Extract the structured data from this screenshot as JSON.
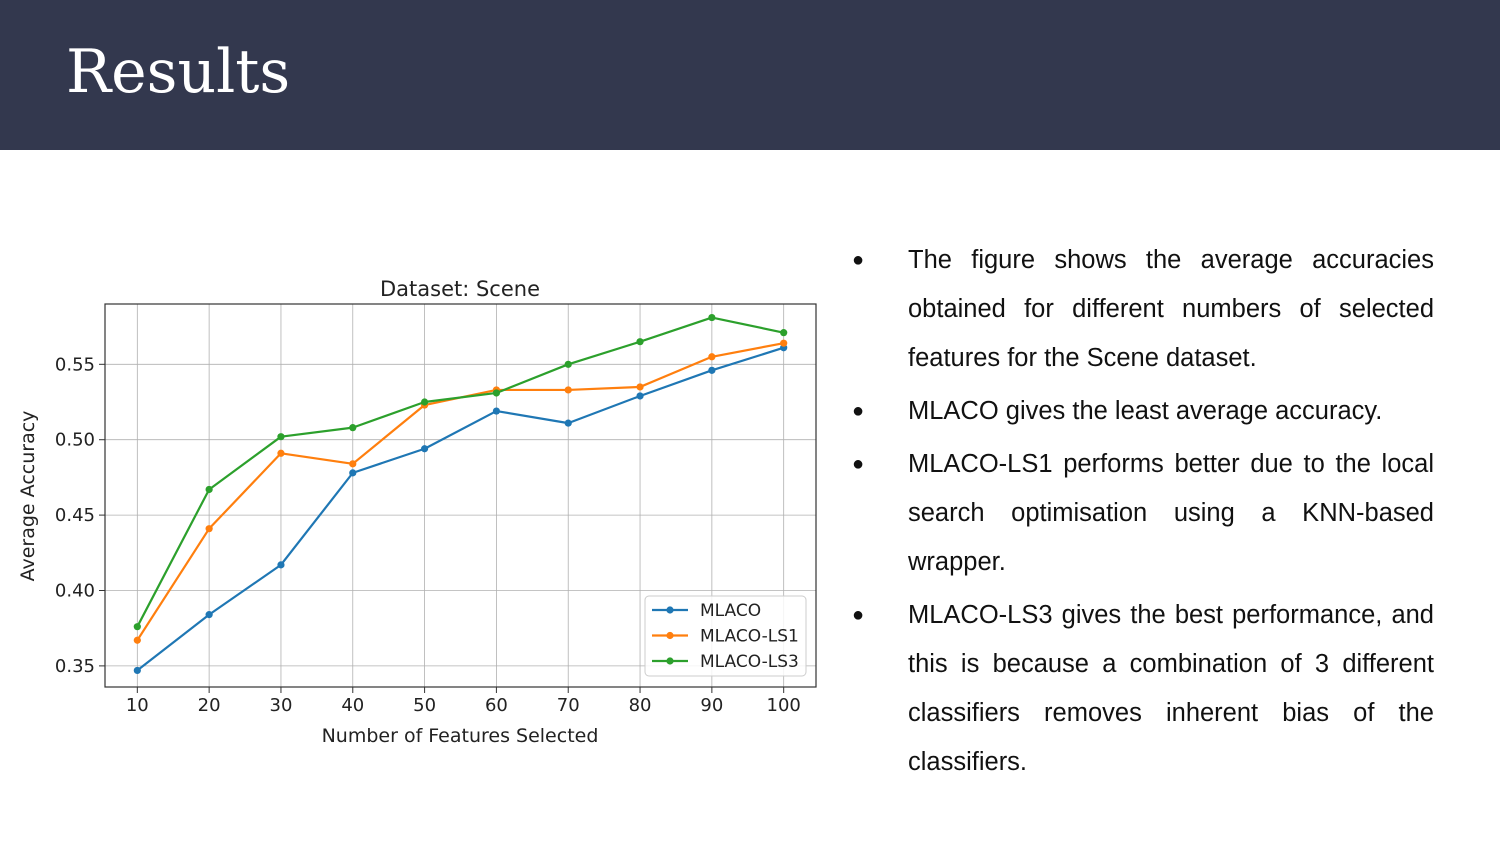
{
  "slide": {
    "title": "Results",
    "colors": {
      "header_bg": "#33384e",
      "title_text": "#ffffff"
    }
  },
  "bullets": [
    {
      "text": "The figure shows the average accuracies obtained for different numbers of selected features for the Scene dataset."
    },
    {
      "text": "MLACO gives the least average accuracy."
    },
    {
      "text": "MLACO-LS1 performs better due to the local search optimisation using a KNN-based wrapper."
    },
    {
      "text": "MLACO-LS3 gives the best performance, and this is because a combination of 3 different classifiers removes inherent bias of the classifiers."
    }
  ],
  "chart_data": {
    "type": "line",
    "title": "Dataset: Scene",
    "xlabel": "Number of Features Selected",
    "ylabel": "Average Accuracy",
    "x": [
      10,
      20,
      30,
      40,
      50,
      60,
      70,
      80,
      90,
      100
    ],
    "xlim": [
      5.5,
      104.5
    ],
    "ylim": [
      0.336,
      0.59
    ],
    "yticks": [
      0.35,
      0.4,
      0.45,
      0.5,
      0.55
    ],
    "ytick_labels": [
      "0.35",
      "0.40",
      "0.45",
      "0.50",
      "0.55"
    ],
    "xtick_labels": [
      "10",
      "20",
      "30",
      "40",
      "50",
      "60",
      "70",
      "80",
      "90",
      "100"
    ],
    "grid": true,
    "legend_position": "lower-right",
    "series": [
      {
        "name": "MLACO",
        "color": "#1f77b4",
        "values": [
          0.347,
          0.384,
          0.417,
          0.478,
          0.494,
          0.519,
          0.511,
          0.529,
          0.546,
          0.561
        ]
      },
      {
        "name": "MLACO-LS1",
        "color": "#ff7f0e",
        "values": [
          0.367,
          0.441,
          0.491,
          0.484,
          0.523,
          0.533,
          0.533,
          0.535,
          0.555,
          0.564
        ]
      },
      {
        "name": "MLACO-LS3",
        "color": "#2ca02c",
        "values": [
          0.376,
          0.467,
          0.502,
          0.508,
          0.525,
          0.531,
          0.55,
          0.565,
          0.581,
          0.571
        ]
      }
    ]
  }
}
